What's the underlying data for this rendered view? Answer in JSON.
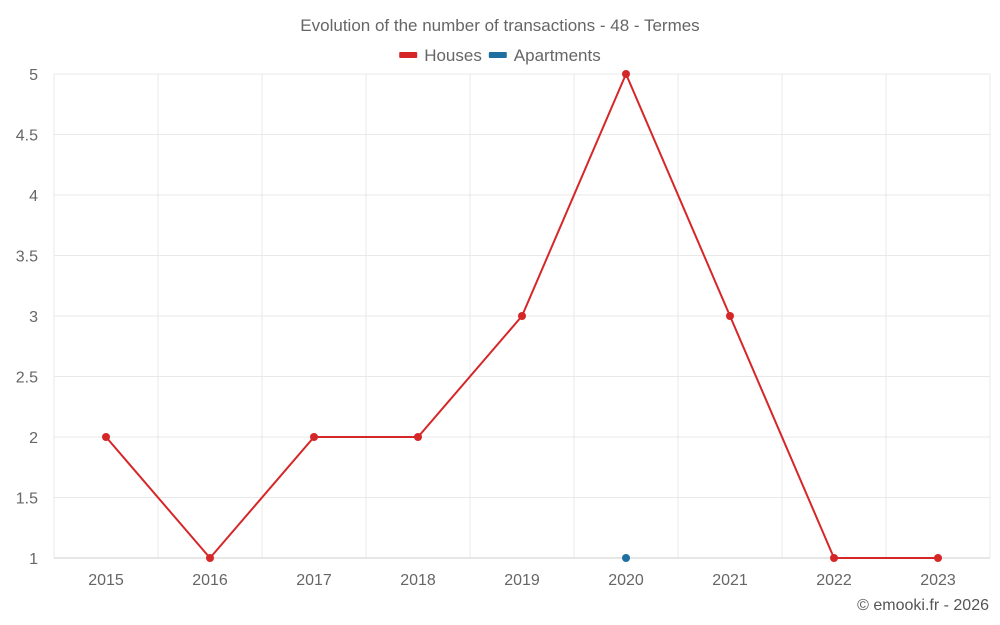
{
  "chart_data": {
    "type": "line",
    "title": "Evolution of the number of transactions - 48 - Termes",
    "categories": [
      "2015",
      "2016",
      "2017",
      "2018",
      "2019",
      "2020",
      "2021",
      "2022",
      "2023"
    ],
    "series": [
      {
        "name": "Houses",
        "color": "#d62728",
        "values": [
          2,
          1,
          2,
          2,
          3,
          5,
          3,
          1,
          1
        ]
      },
      {
        "name": "Apartments",
        "color": "#1f6fa0",
        "values": [
          null,
          null,
          null,
          null,
          null,
          1,
          null,
          null,
          null
        ]
      }
    ],
    "yticks": [
      "1",
      "1.5",
      "2",
      "2.5",
      "3",
      "3.5",
      "4",
      "4.5",
      "5"
    ],
    "ylim": [
      1,
      5
    ],
    "grid": true,
    "legend_position": "top-center"
  },
  "credit": "© emooki.fr - 2026"
}
